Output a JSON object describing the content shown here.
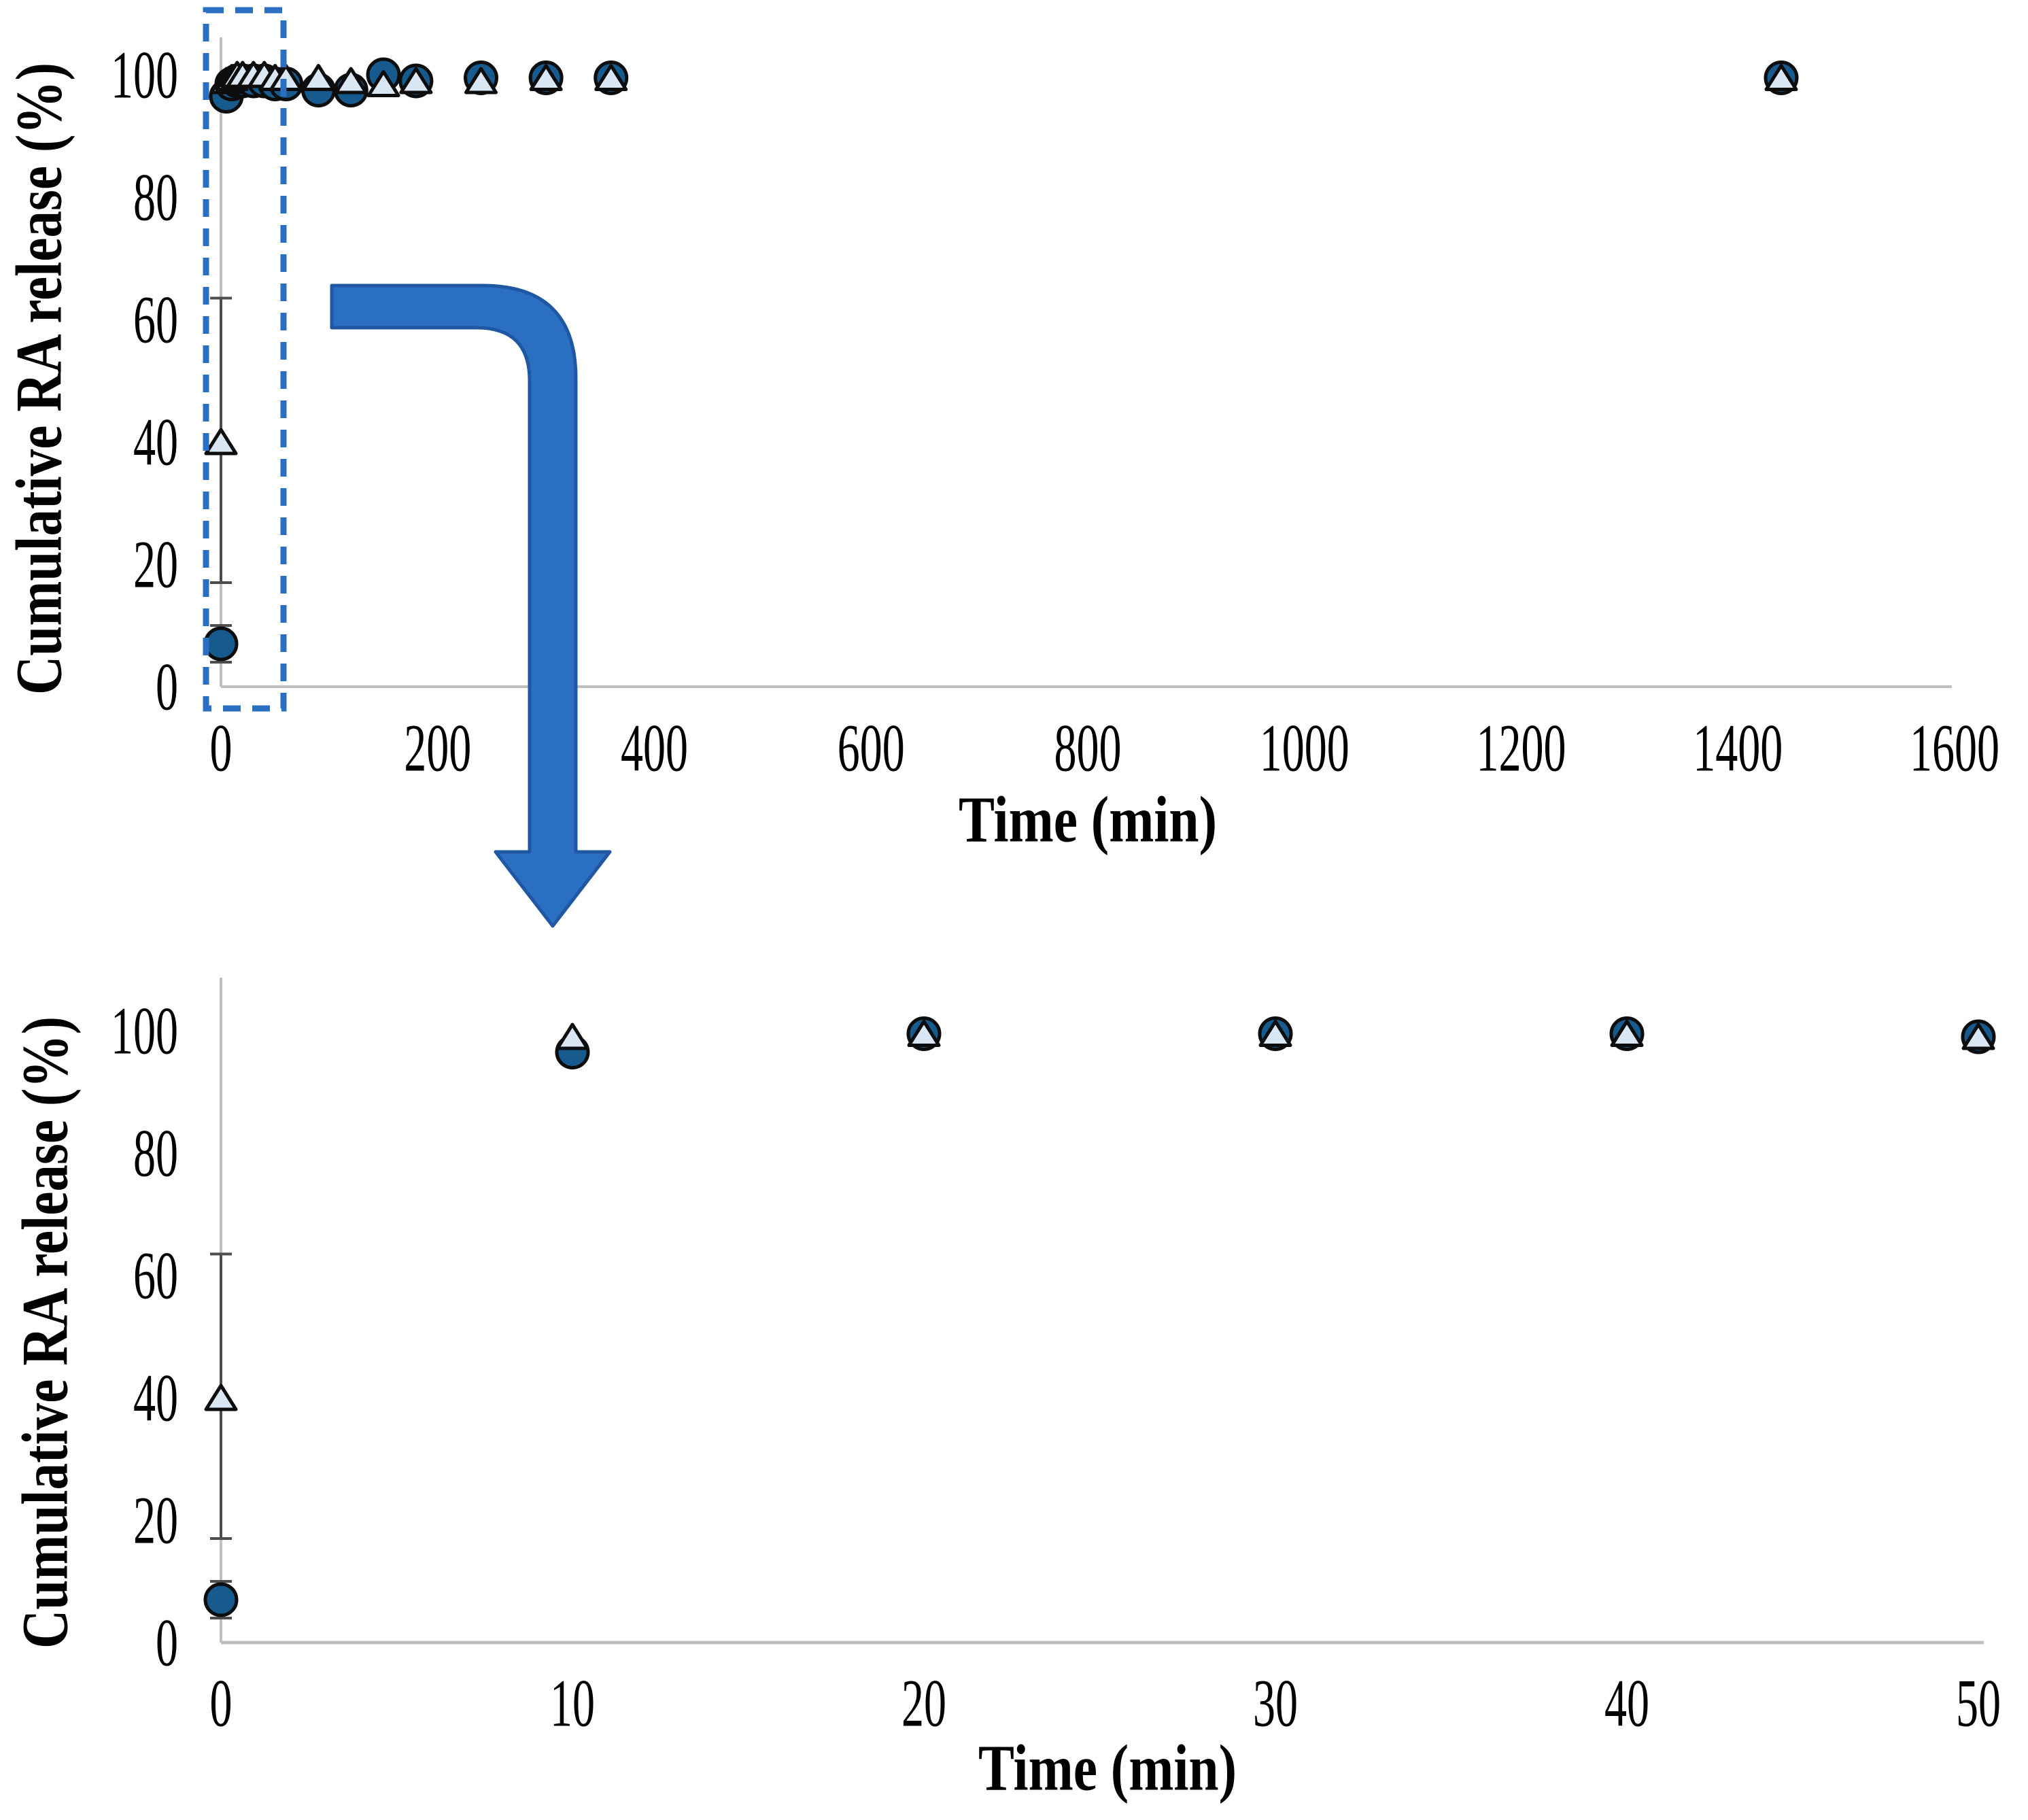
{
  "figure": {
    "colors": {
      "background": "#FFFFFF",
      "axis_line": "#BFBFBF",
      "error_bar": "#4D4D4D",
      "marker_outline": "#0D0D0D",
      "circle_fill": "#175A8E",
      "triangle_fill": "#D9E7F5",
      "arrow_fill": "#2B6FC2",
      "arrow_stroke": "#1F57A2",
      "dashed_box_color": "#2B6FC2",
      "text_color": "#000000"
    },
    "annotations": {
      "dashed_box": {
        "target_chart": "top",
        "x_range_min": [
          -14,
          58
        ],
        "y_range_pct": [
          -4,
          110
        ],
        "style": "dashed-rectangle"
      },
      "zoom_arrow": {
        "shape": "bent-arrow-right-then-down",
        "meaning": "magnified view of boxed early-time region shown in bottom chart"
      }
    }
  },
  "chart_data": [
    {
      "type": "scatter",
      "position": "top",
      "title": "",
      "xlabel": "Time (min)",
      "ylabel": "Cumulative RA release (%)",
      "xlim": [
        0,
        1600
      ],
      "ylim": [
        0,
        100
      ],
      "grid": false,
      "legend": null,
      "x_tick_labels": [
        "0",
        "200",
        "400",
        "600",
        "800",
        "1000",
        "1200",
        "1400",
        "1600"
      ],
      "y_tick_labels": [
        "0",
        "20",
        "40",
        "60",
        "80",
        "100"
      ],
      "series": [
        {
          "name": "dark-circle-series",
          "marker": "circle",
          "x": [
            0,
            5,
            10,
            15,
            20,
            30,
            40,
            50,
            60,
            90,
            120,
            150,
            180,
            240,
            300,
            360,
            1440
          ],
          "y": [
            7,
            96.5,
            98.5,
            99,
            99,
            99,
            99,
            98.5,
            98.5,
            97.5,
            97.5,
            100,
            99,
            99.5,
            99.5,
            99.5,
            99.5
          ]
        },
        {
          "name": "light-triangle-series",
          "marker": "triangle",
          "x": [
            0,
            5,
            10,
            15,
            20,
            30,
            40,
            50,
            60,
            90,
            120,
            150,
            180,
            240,
            300,
            360,
            1440
          ],
          "y": [
            40,
            99,
            99.5,
            100,
            100,
            100,
            100,
            99.5,
            99.5,
            99.5,
            99,
            98.5,
            99,
            99,
            99.5,
            99.5,
            99.5
          ]
        }
      ],
      "error_bars": [
        {
          "series": "light-triangle-series",
          "x": 0,
          "center": 40,
          "low": 17,
          "high": 63.5
        },
        {
          "series": "dark-circle-series",
          "x": 0,
          "center": 7,
          "low": 4,
          "high": 10
        }
      ]
    },
    {
      "type": "scatter",
      "position": "bottom",
      "title": "",
      "xlabel": "Time (min)",
      "ylabel": "Cumulative RA release (%)",
      "xlim": [
        0,
        50
      ],
      "ylim": [
        0,
        100
      ],
      "grid": false,
      "legend": null,
      "x_tick_labels": [
        "0",
        "10",
        "20",
        "30",
        "40",
        "50"
      ],
      "y_tick_labels": [
        "0",
        "20",
        "40",
        "60",
        "80",
        "100"
      ],
      "series": [
        {
          "name": "dark-circle-series",
          "marker": "circle",
          "x": [
            0,
            10,
            20,
            30,
            40,
            50
          ],
          "y": [
            7,
            96.5,
            99.5,
            99.5,
            99.5,
            99
          ]
        },
        {
          "name": "light-triangle-series",
          "marker": "triangle",
          "x": [
            0,
            10,
            20,
            30,
            40,
            50
          ],
          "y": [
            40,
            99,
            99.5,
            99.5,
            99.5,
            99
          ]
        }
      ],
      "error_bars": [
        {
          "series": "light-triangle-series",
          "x": 0,
          "center": 40,
          "low": 17,
          "high": 63.5
        },
        {
          "series": "dark-circle-series",
          "x": 0,
          "center": 7,
          "low": 4,
          "high": 10
        }
      ]
    }
  ]
}
